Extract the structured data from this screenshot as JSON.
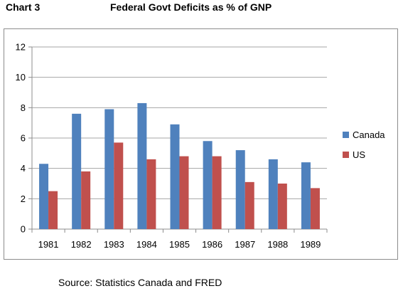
{
  "header": {
    "label": "Chart 3",
    "title": "Federal Govt Deficits as % of GNP"
  },
  "footer": {
    "source": "Source: Statistics Canada and FRED"
  },
  "chart_data": {
    "type": "bar",
    "title": "Federal Govt Deficits as % of GNP",
    "xlabel": "",
    "ylabel": "",
    "categories": [
      "1981",
      "1982",
      "1983",
      "1984",
      "1985",
      "1986",
      "1987",
      "1988",
      "1989"
    ],
    "series": [
      {
        "name": "Canada",
        "color": "#4f81bd",
        "values": [
          4.3,
          7.6,
          7.9,
          8.3,
          6.9,
          5.8,
          5.2,
          4.6,
          4.4
        ]
      },
      {
        "name": "US",
        "color": "#c0504d",
        "values": [
          2.5,
          3.8,
          5.7,
          4.6,
          4.8,
          4.8,
          3.1,
          3.0,
          2.7
        ]
      }
    ],
    "ylim": [
      0,
      12
    ],
    "yticks": [
      0,
      2,
      4,
      6,
      8,
      10,
      12
    ],
    "grid": true,
    "legend": "right"
  }
}
